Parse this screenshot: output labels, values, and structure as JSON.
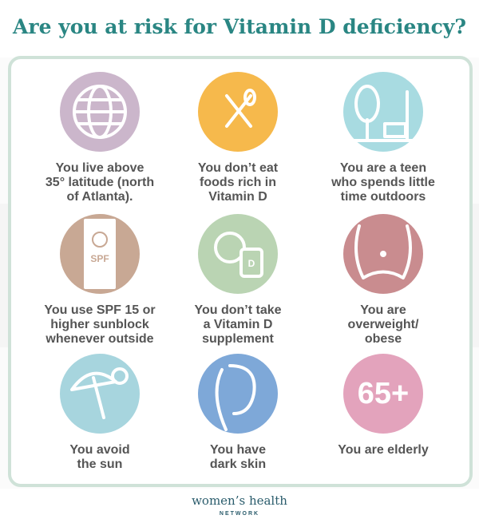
{
  "title": "Are you at risk for Vitamin D deficiency?",
  "items": [
    {
      "lines": [
        "You live above",
        "35° latitude (north",
        "of Atlanta)."
      ],
      "color": "#cbb6cb"
    },
    {
      "lines": [
        "You don’t eat",
        "foods rich in",
        "Vitamin D"
      ],
      "color": "#f6b94c"
    },
    {
      "lines": [
        "You are a teen",
        "who spends little",
        "time outdoors"
      ],
      "color": "#a8dbe1"
    },
    {
      "lines": [
        "You use SPF 15 or",
        "higher sunblock",
        "whenever outside"
      ],
      "color": "#c8a894",
      "icon_text": "SPF"
    },
    {
      "lines": [
        "You don’t take",
        "a Vitamin D",
        "supplement"
      ],
      "color": "#bad4b3",
      "icon_text": "D"
    },
    {
      "lines": [
        "You are",
        "overweight/",
        "obese"
      ],
      "color": "#c98c8f"
    },
    {
      "lines": [
        "You avoid",
        "the sun"
      ],
      "color": "#a7d5de"
    },
    {
      "lines": [
        "You have",
        "dark skin"
      ],
      "color": "#7ea8d8"
    },
    {
      "lines": [
        "You are elderly"
      ],
      "color": "#e3a3bc",
      "icon_text": "65+"
    }
  ],
  "logo": {
    "name": "women’s health",
    "sub": "NETWORK"
  }
}
